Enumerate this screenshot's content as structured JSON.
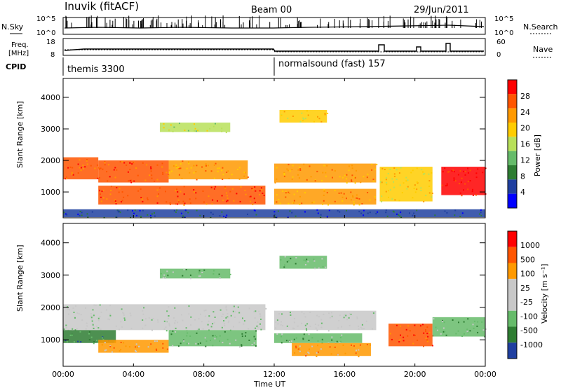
{
  "header": {
    "station": "Inuvik (fitACF)",
    "beam": "Beam 00",
    "date": "29/Jun/2011"
  },
  "panels": {
    "nsky": {
      "left_label": "N.Sky",
      "right_label": "N.Search",
      "left_ticks": [
        "10^5",
        "10^0"
      ],
      "right_ticks": [
        "10^5",
        "10^0"
      ]
    },
    "freq": {
      "left_label_1": "Freq.",
      "left_label_2": "[MHz]",
      "right_label": "Nave",
      "left_ticks": [
        "18",
        "8"
      ],
      "right_ticks": [
        "60",
        "0"
      ]
    },
    "cpid": {
      "label": "CPID",
      "segment_1": "themis 3300",
      "segment_2": "normalsound (fast) 157"
    }
  },
  "colors": {
    "power": [
      "#0000ff",
      "#1f3fa0",
      "#2e7d32",
      "#66bb6a",
      "#b8e05a",
      "#ffcc00",
      "#ff9900",
      "#ff5500",
      "#ff0000"
    ],
    "velocity": [
      "#1f3fa0",
      "#2e7d32",
      "#66bb6a",
      "#c8c8c8",
      "#c8c8c8",
      "#ff9900",
      "#ff5500",
      "#ff0000"
    ],
    "grey": "#c8c8c8"
  },
  "chart_data": [
    {
      "type": "heatmap",
      "name": "power",
      "ylabel": "Slant Range [km]",
      "ylim": [
        180,
        4600
      ],
      "yticks": [
        1000,
        2000,
        3000,
        4000
      ],
      "xlim": [
        0,
        24
      ],
      "colorbar_label": "Power [dB]",
      "colorbar_ticks": [
        "28",
        "24",
        "20",
        "16",
        "12",
        "8",
        "4"
      ],
      "bands": [
        {
          "t0": 0.0,
          "t1": 2.0,
          "r0": 1400,
          "r1": 2100,
          "c": 7
        },
        {
          "t0": 2.0,
          "t1": 6.0,
          "r0": 1300,
          "r1": 2000,
          "c": 7
        },
        {
          "t0": 6.0,
          "t1": 10.5,
          "r0": 1400,
          "r1": 2000,
          "c": 6
        },
        {
          "t0": 12.0,
          "t1": 17.8,
          "r0": 1300,
          "r1": 1900,
          "c": 6
        },
        {
          "t0": 2.0,
          "t1": 11.5,
          "r0": 600,
          "r1": 1200,
          "c": 7
        },
        {
          "t0": 12.0,
          "t1": 17.8,
          "r0": 600,
          "r1": 1100,
          "c": 6
        },
        {
          "t0": 18.0,
          "t1": 21.0,
          "r0": 700,
          "r1": 1800,
          "c": 5
        },
        {
          "t0": 21.5,
          "t1": 24.0,
          "r0": 900,
          "r1": 1800,
          "c": 8
        },
        {
          "t0": 5.5,
          "t1": 9.5,
          "r0": 2900,
          "r1": 3200,
          "c": 4
        },
        {
          "t0": 12.3,
          "t1": 15.0,
          "r0": 3200,
          "r1": 3600,
          "c": 5
        },
        {
          "t0": 0.0,
          "t1": 24.0,
          "r0": 200,
          "r1": 450,
          "c": 1
        }
      ]
    },
    {
      "type": "heatmap",
      "name": "velocity",
      "ylabel": "Slant Range [km]",
      "ylim": [
        180,
        4600
      ],
      "yticks": [
        1000,
        2000,
        3000,
        4000
      ],
      "xlim": [
        0,
        24
      ],
      "xlabel": "Time UT",
      "xticks": [
        "00:00",
        "04:00",
        "08:00",
        "12:00",
        "16:00",
        "20:00",
        "00:00"
      ],
      "colorbar_label": "Velocity [m s⁻¹]",
      "colorbar_ticks": [
        "1000",
        "500",
        "100",
        "25",
        "-25",
        "-100",
        "-500",
        "-1000"
      ],
      "bands": [
        {
          "t0": 0.0,
          "t1": 11.5,
          "r0": 1300,
          "r1": 2100,
          "c": 3
        },
        {
          "t0": 12.0,
          "t1": 17.8,
          "r0": 1300,
          "r1": 1900,
          "c": 3
        },
        {
          "t0": 0.0,
          "t1": 3.0,
          "r0": 900,
          "r1": 1300,
          "c": 1
        },
        {
          "t0": 2.0,
          "t1": 6.0,
          "r0": 600,
          "r1": 1000,
          "c": 5
        },
        {
          "t0": 6.0,
          "t1": 11.0,
          "r0": 800,
          "r1": 1300,
          "c": 2
        },
        {
          "t0": 12.0,
          "t1": 17.0,
          "r0": 900,
          "r1": 1200,
          "c": 2
        },
        {
          "t0": 13.0,
          "t1": 17.5,
          "r0": 500,
          "r1": 900,
          "c": 5
        },
        {
          "t0": 18.5,
          "t1": 21.0,
          "r0": 800,
          "r1": 1500,
          "c": 6
        },
        {
          "t0": 21.0,
          "t1": 24.0,
          "r0": 1100,
          "r1": 1700,
          "c": 2
        },
        {
          "t0": 5.5,
          "t1": 9.5,
          "r0": 2900,
          "r1": 3200,
          "c": 2
        },
        {
          "t0": 12.3,
          "t1": 15.0,
          "r0": 3200,
          "r1": 3600,
          "c": 2
        }
      ]
    }
  ]
}
